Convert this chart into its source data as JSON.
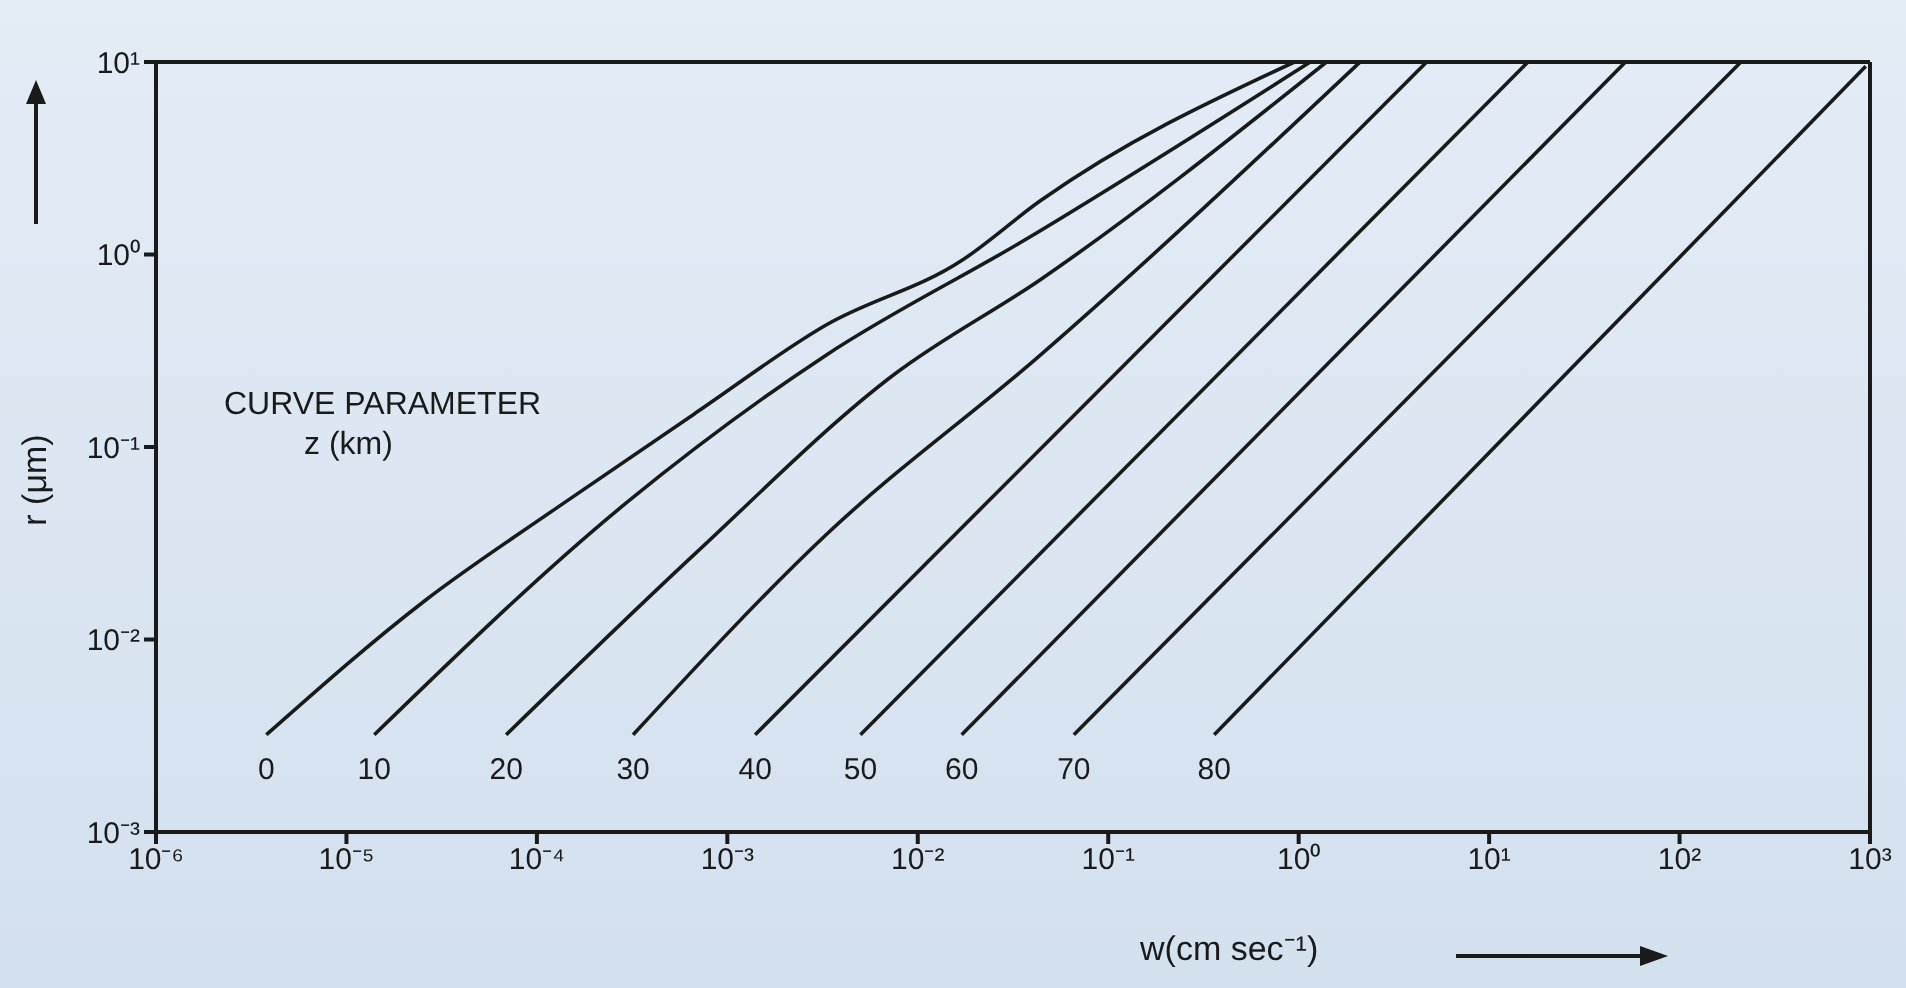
{
  "chart_data": {
    "type": "line",
    "xlabel": "w(cm sec⁻¹)",
    "ylabel": "r (μm)",
    "legend_title": "CURVE PARAMETER\nz (km)",
    "log": "xy",
    "legend": false,
    "marker": "none",
    "line_style": "solid",
    "xlim": [
      1e-06,
      1000
    ],
    "ylim": [
      0.001,
      10
    ],
    "xticks": [
      {
        "value": 1e-06,
        "label": "10⁻⁶"
      },
      {
        "value": 1e-05,
        "label": "10⁻⁵"
      },
      {
        "value": 0.0001,
        "label": "10⁻⁴"
      },
      {
        "value": 0.001,
        "label": "10⁻³"
      },
      {
        "value": 0.01,
        "label": "10⁻²"
      },
      {
        "value": 0.1,
        "label": "10⁻¹"
      },
      {
        "value": 1,
        "label": "10⁰"
      },
      {
        "value": 10,
        "label": "10¹"
      },
      {
        "value": 100,
        "label": "10²"
      },
      {
        "value": 1000,
        "label": "10³"
      }
    ],
    "yticks": [
      {
        "value": 0.001,
        "label": "10⁻³"
      },
      {
        "value": 0.01,
        "label": "10⁻²"
      },
      {
        "value": 0.1,
        "label": "10⁻¹"
      },
      {
        "value": 1,
        "label": "10⁰"
      },
      {
        "value": 10,
        "label": "10¹"
      }
    ],
    "series": [
      {
        "name": "0",
        "color": "#1a1a1a",
        "x": [
          3.8e-06,
          2.6e-05,
          0.00013,
          0.00068,
          0.0033,
          0.017,
          0.044,
          0.95
        ],
        "values": [
          0.0032,
          0.016,
          0.049,
          0.15,
          0.43,
          0.93,
          1.9,
          10
        ]
      },
      {
        "name": "10",
        "color": "#1a1a1a",
        "x": [
          1.4e-05,
          0.0003,
          0.0033,
          0.037,
          1.15
        ],
        "values": [
          0.0032,
          0.052,
          0.3,
          1.2,
          10
        ]
      },
      {
        "name": "20",
        "color": "#1a1a1a",
        "x": [
          6.9e-05,
          0.00068,
          0.0076,
          0.044,
          1.4
        ],
        "values": [
          0.0032,
          0.028,
          0.24,
          0.74,
          10
        ]
      },
      {
        "name": "30",
        "color": "#1a1a1a",
        "x": [
          0.00032,
          0.0033,
          0.044,
          2.1
        ],
        "values": [
          0.0032,
          0.035,
          0.3,
          10
        ]
      },
      {
        "name": "40",
        "color": "#1a1a1a",
        "x": [
          0.0014,
          4.7
        ],
        "values": [
          0.0032,
          10
        ]
      },
      {
        "name": "50",
        "color": "#1a1a1a",
        "x": [
          0.005,
          16
        ],
        "values": [
          0.0032,
          10
        ]
      },
      {
        "name": "60",
        "color": "#1a1a1a",
        "x": [
          0.017,
          52
        ],
        "values": [
          0.0032,
          10
        ]
      },
      {
        "name": "70",
        "color": "#1a1a1a",
        "x": [
          0.066,
          210
        ],
        "values": [
          0.0032,
          10
        ]
      },
      {
        "name": "80",
        "color": "#1a1a1a",
        "x": [
          0.36,
          950
        ],
        "values": [
          0.0032,
          9.5
        ]
      }
    ]
  }
}
